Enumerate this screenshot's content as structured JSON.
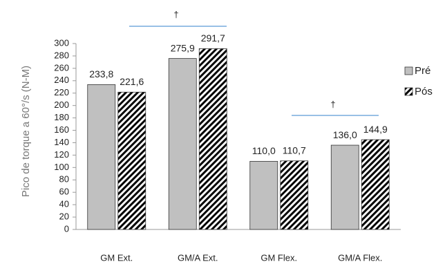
{
  "chart_data": {
    "type": "bar",
    "y_label": "Pico de torque a 60°/s (N-M)",
    "categories": [
      "GM Ext.",
      "GM/A Ext.",
      "GM Flex.",
      "GM/A Flex."
    ],
    "series": [
      {
        "name": "Pré",
        "color": "#c0c0c0",
        "hatch": false,
        "values": [
          233.8,
          275.9,
          110.0,
          136.0
        ],
        "value_labels": [
          "233,8",
          "275,9",
          "110,0",
          "136,0"
        ]
      },
      {
        "name": "Pós",
        "color": "#000000",
        "hatch": true,
        "values": [
          221.6,
          291.7,
          110.7,
          144.9
        ],
        "value_labels": [
          "221,6",
          "291,7",
          "110,7",
          "144,9"
        ]
      }
    ],
    "ylim": [
      0,
      300
    ],
    "yticks": [
      0,
      20,
      40,
      60,
      80,
      100,
      120,
      140,
      160,
      180,
      200,
      220,
      240,
      260,
      280,
      300
    ],
    "annotations": [
      "†",
      "†"
    ],
    "legend": "right"
  }
}
